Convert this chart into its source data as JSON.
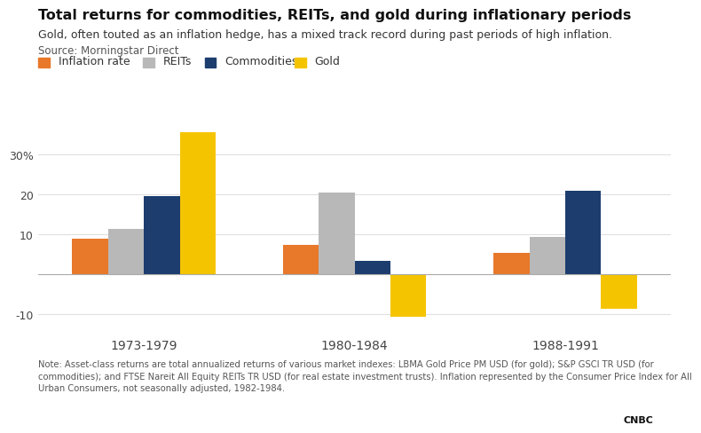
{
  "title": "Total returns for commodities, REITs, and gold during inflationary periods",
  "subtitle": "Gold, often touted as an inflation hedge, has a mixed track record during past periods of high inflation.",
  "source_legend": "Source: Morningstar Direct",
  "note": "Note: Asset-class returns are total annualized returns of various market indexes: LBMA Gold Price PM USD (for gold); S&P GSCI TR USD (for\ncommodities); and FTSE Nareit All Equity REITs TR USD (for real estate investment trusts). Inflation represented by the Consumer Price Index for All\nUrban Consumers, not seasonally adjusted, 1982-1984.",
  "periods": [
    "1973-1979",
    "1980-1984",
    "1988-1991"
  ],
  "series": {
    "Inflation rate": {
      "color": "#E8782A",
      "values": [
        9.0,
        7.3,
        5.5
      ]
    },
    "REITs": {
      "color": "#B8B8B8",
      "values": [
        11.5,
        20.5,
        9.5
      ]
    },
    "Commodities": {
      "color": "#1C3D6E",
      "values": [
        19.5,
        3.5,
        21.0
      ]
    },
    "Gold": {
      "color": "#F5C400",
      "values": [
        35.5,
        -10.5,
        -8.5
      ]
    }
  },
  "ylim": [
    -13,
    38
  ],
  "yticks": [
    -10,
    10,
    20,
    30
  ],
  "ytick_special": "30%",
  "background_color": "#FFFFFF",
  "grid_color": "#DDDDDD",
  "bar_width": 0.17,
  "legend_items": [
    "Inflation rate",
    "REITs",
    "Commodities",
    "Gold"
  ]
}
